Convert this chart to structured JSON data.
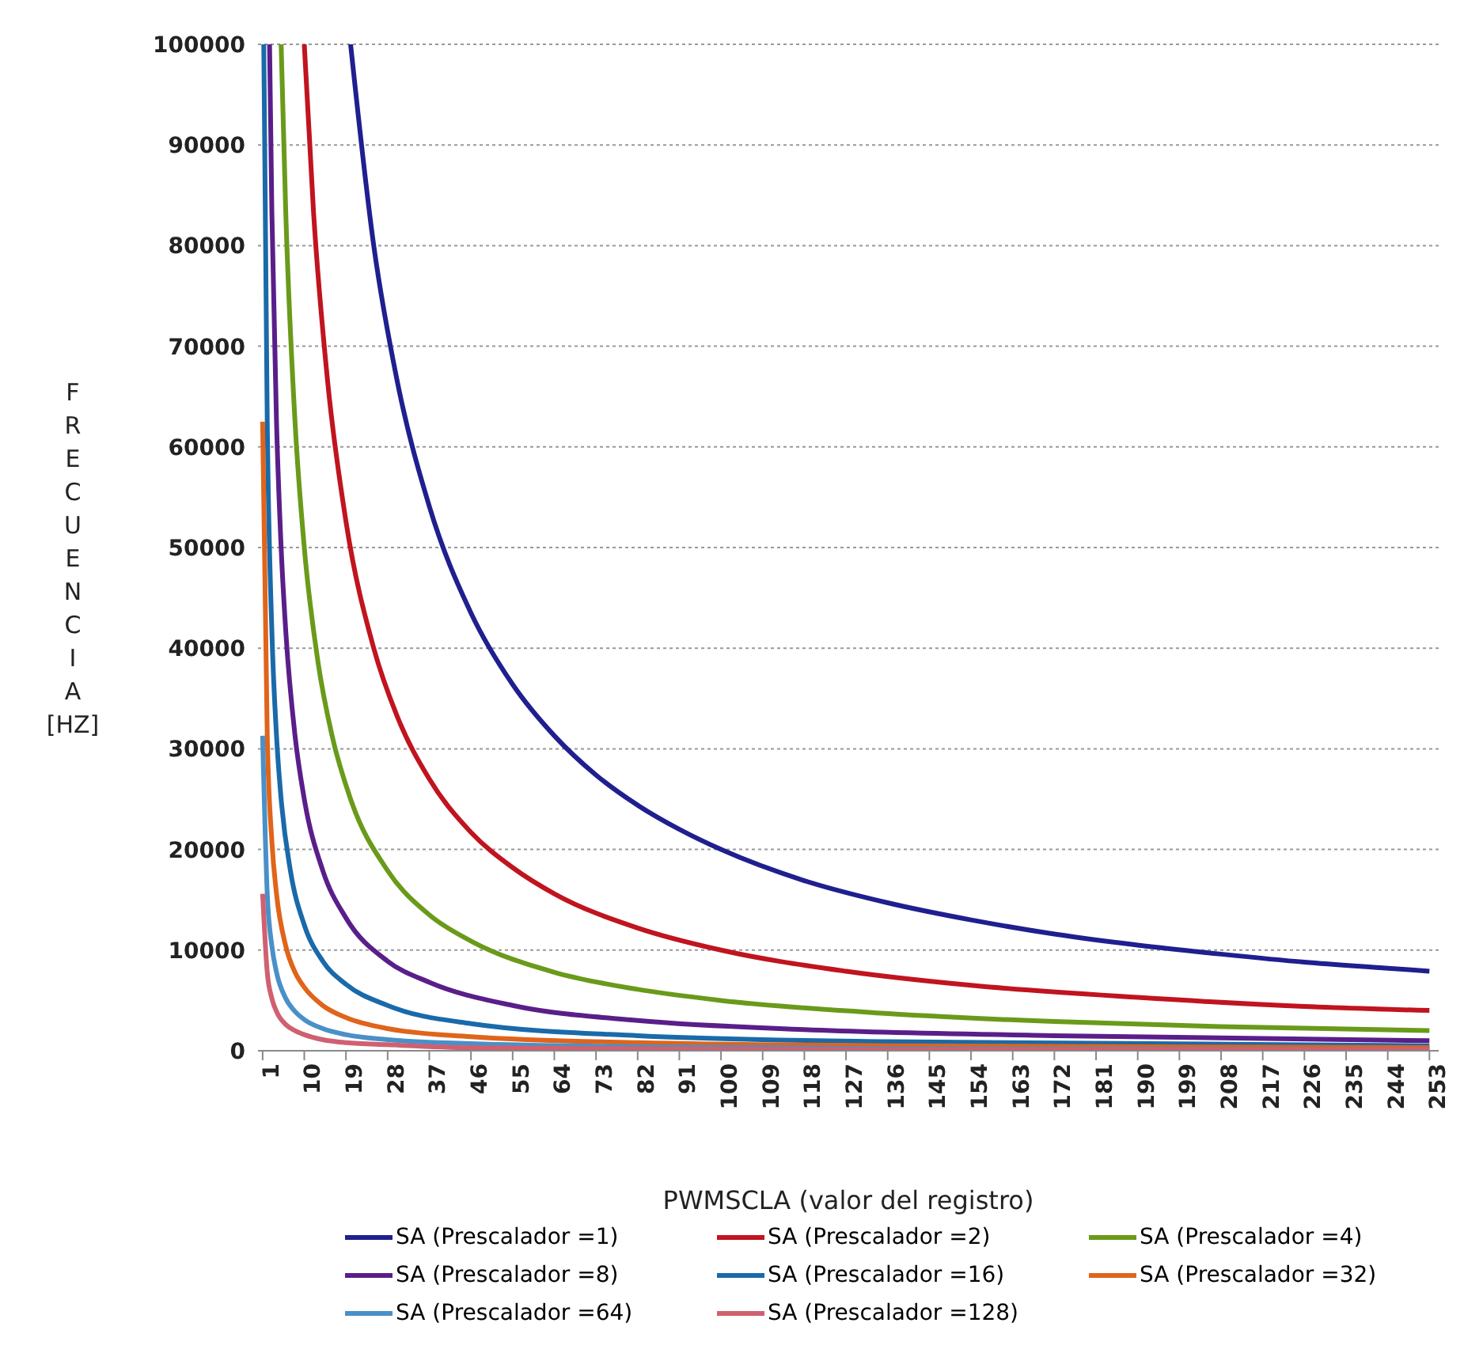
{
  "chart_data": {
    "type": "line",
    "xlabel": "PWMSCLA (valor del registro)",
    "ylabel": "FRECUENCIA [HZ]",
    "xlim": [
      0,
      255
    ],
    "xticks": [
      1,
      10,
      19,
      28,
      37,
      46,
      55,
      64,
      73,
      82,
      91,
      100,
      109,
      118,
      127,
      136,
      145,
      154,
      163,
      172,
      181,
      190,
      199,
      208,
      217,
      226,
      235,
      244,
      253
    ],
    "ylim": [
      0,
      100000
    ],
    "yticks": [
      0,
      10000,
      20000,
      30000,
      40000,
      50000,
      60000,
      70000,
      80000,
      90000,
      100000
    ],
    "grid": "y",
    "legend": "bottom",
    "marker": "none",
    "line_style": "solid",
    "series": [
      {
        "name": "SA (Prescalador =1)",
        "color": "#1f1f8f",
        "x": [
          20,
          25,
          30,
          37,
          46,
          55,
          64,
          73,
          82,
          91,
          100,
          118,
          136,
          154,
          172,
          190,
          208,
          226,
          244,
          253
        ],
        "values": [
          100000,
          80000,
          66700,
          54100,
          43500,
          36400,
          31300,
          27400,
          24400,
          22000,
          20000,
          16900,
          14700,
          13000,
          11600,
          10500,
          9600,
          8800,
          8200,
          7900
        ]
      },
      {
        "name": "SA (Prescalador =2)",
        "color": "#c0141e",
        "x": [
          10,
          12,
          15,
          19,
          25,
          30,
          37,
          46,
          55,
          64,
          82,
          100,
          127,
          154,
          190,
          226,
          253
        ],
        "values": [
          100000,
          83300,
          66700,
          52600,
          40000,
          33300,
          27000,
          21700,
          18200,
          15600,
          12200,
          10000,
          7900,
          6500,
          5300,
          4400,
          4000
        ]
      },
      {
        "name": "SA (Prescalador =4)",
        "color": "#6a9a1a",
        "x": [
          5,
          6,
          8,
          10,
          13,
          16,
          20,
          28,
          37,
          46,
          64,
          82,
          100,
          136,
          172,
          208,
          253
        ],
        "values": [
          100000,
          83300,
          62500,
          50000,
          38500,
          31300,
          25000,
          17900,
          13500,
          10900,
          7800,
          6100,
          5000,
          3700,
          2900,
          2400,
          2000
        ]
      },
      {
        "name": "SA (Prescalador =8)",
        "color": "#5a1e8a",
        "x": [
          2.5,
          3,
          4,
          5,
          6,
          8,
          10,
          14,
          19,
          28,
          37,
          55,
          82,
          118,
          172,
          253
        ],
        "values": [
          100000,
          83300,
          62500,
          50000,
          41700,
          31300,
          25000,
          17900,
          13200,
          8900,
          6800,
          4500,
          3000,
          2100,
          1500,
          1000
        ]
      },
      {
        "name": "SA (Prescalador =16)",
        "color": "#1a6aaa",
        "x": [
          1.25,
          2,
          3,
          4,
          5,
          7,
          10,
          14,
          19,
          28,
          46,
          82,
          136,
          253
        ],
        "values": [
          100000,
          62500,
          41700,
          31300,
          25000,
          17900,
          12500,
          8900,
          6600,
          4500,
          2700,
          1500,
          900,
          500
        ]
      },
      {
        "name": "SA (Prescalador =32)",
        "color": "#e0641a",
        "x": [
          1,
          2,
          3,
          4,
          6,
          8,
          10,
          14,
          19,
          28,
          46,
          82,
          136,
          253
        ],
        "values": [
          62500,
          31300,
          20800,
          15600,
          10400,
          7800,
          6300,
          4500,
          3300,
          2200,
          1400,
          800,
          500,
          300
        ]
      },
      {
        "name": "SA (Prescalador =64)",
        "color": "#4a90c8",
        "x": [
          1,
          2,
          3,
          4,
          6,
          8,
          10,
          14,
          19,
          28,
          46,
          82,
          136,
          253
        ],
        "values": [
          31300,
          15600,
          10400,
          7800,
          5200,
          3900,
          3100,
          2200,
          1600,
          1100,
          700,
          400,
          200,
          100
        ]
      },
      {
        "name": "SA (Prescalador =128)",
        "color": "#d06070",
        "x": [
          1,
          2,
          3,
          4,
          6,
          8,
          10,
          14,
          19,
          28,
          46,
          82,
          136,
          253
        ],
        "values": [
          15600,
          7800,
          5200,
          3900,
          2600,
          2000,
          1600,
          1100,
          800,
          600,
          300,
          200,
          100,
          100
        ]
      }
    ]
  }
}
